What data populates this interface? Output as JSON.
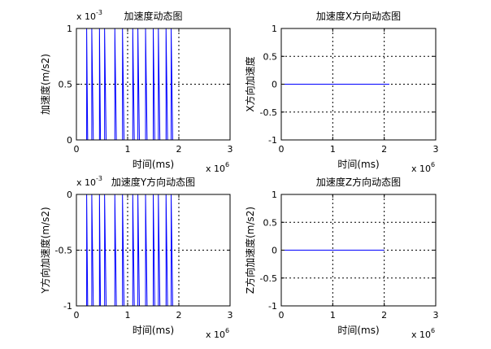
{
  "figure": {
    "background": "#ffffff",
    "axis_color": "#000000",
    "line_color": "#0000ff",
    "grid_color": "#000000"
  },
  "chart_data": [
    {
      "type": "line",
      "title": "加速度动态图",
      "xlabel": "时间(ms)",
      "ylabel": "加速度(m/s2)",
      "xlim": [
        0,
        3
      ],
      "ylim": [
        0,
        1
      ],
      "xticks": [
        "0",
        "1",
        "2",
        "3"
      ],
      "yticks": [
        "0",
        "0.5",
        "1"
      ],
      "x_exponent_base": "x 10",
      "x_exponent_power": "6",
      "y_exponent_base": "x 10",
      "y_exponent_power": "-3",
      "grid": true,
      "series": [
        {
          "color": "#0000ff",
          "x": [
            0.2,
            0.2,
            0.22,
            0.3,
            0.3,
            0.33,
            0.45,
            0.45,
            0.47,
            0.55,
            0.55,
            0.58,
            0.75,
            0.75,
            0.78,
            0.9,
            0.9,
            0.93,
            1.1,
            1.1,
            1.13,
            1.2,
            1.2,
            1.23,
            1.35,
            1.35,
            1.38,
            1.5,
            1.5,
            1.53,
            1.6,
            1.6,
            1.63,
            1.75,
            1.75,
            1.78,
            1.85,
            1.85,
            1.88
          ],
          "y": [
            0,
            1,
            0,
            0,
            1,
            0,
            0,
            1,
            0,
            0,
            1,
            0,
            0,
            1,
            0,
            0,
            1,
            0,
            0,
            1,
            0,
            0,
            1,
            0,
            0,
            1,
            0,
            0,
            1,
            0,
            0,
            1,
            0,
            0,
            1,
            0,
            0,
            1,
            0
          ]
        }
      ]
    },
    {
      "type": "line",
      "title": "加速度X方向动态图",
      "xlabel": "时间(ms)",
      "ylabel": "X方向加速度",
      "xlim": [
        0,
        3
      ],
      "ylim": [
        -1,
        1
      ],
      "xticks": [
        "0",
        "1",
        "2",
        "3"
      ],
      "yticks": [
        "-1",
        "-0.5",
        "0",
        "0.5",
        "1"
      ],
      "x_exponent_base": "x 10",
      "x_exponent_power": "6",
      "grid": true,
      "series": [
        {
          "color": "#0000ff",
          "x": [
            0,
            2.1
          ],
          "y": [
            0,
            0
          ]
        }
      ]
    },
    {
      "type": "line",
      "title": "加速度Y方向动态图",
      "xlabel": "时间(ms)",
      "ylabel": "Y方向加速度(m/s2)",
      "xlim": [
        0,
        3
      ],
      "ylim": [
        -1,
        0
      ],
      "xticks": [
        "0",
        "1",
        "2",
        "3"
      ],
      "yticks": [
        "-1",
        "-0.5",
        "0"
      ],
      "x_exponent_base": "x 10",
      "x_exponent_power": "6",
      "y_exponent_base": "x 10",
      "y_exponent_power": "-3",
      "grid": true,
      "series": [
        {
          "color": "#0000ff",
          "x": [
            0.2,
            0.2,
            0.22,
            0.3,
            0.3,
            0.33,
            0.45,
            0.45,
            0.47,
            0.55,
            0.55,
            0.58,
            0.75,
            0.75,
            0.78,
            0.9,
            0.9,
            0.93,
            1.1,
            1.1,
            1.13,
            1.2,
            1.2,
            1.23,
            1.35,
            1.35,
            1.38,
            1.5,
            1.5,
            1.53,
            1.6,
            1.6,
            1.63,
            1.75,
            1.75,
            1.78,
            1.85,
            1.85,
            1.88
          ],
          "y": [
            -1,
            0,
            -1,
            -1,
            0,
            -1,
            -1,
            0,
            -1,
            -1,
            0,
            -1,
            -1,
            0,
            -1,
            -1,
            0,
            -1,
            -1,
            0,
            -1,
            -1,
            0,
            -1,
            -1,
            0,
            -1,
            -1,
            0,
            -1,
            -1,
            0,
            -1,
            -1,
            0,
            -1,
            -1,
            0,
            -1
          ]
        }
      ]
    },
    {
      "type": "line",
      "title": "加速度Z方向动态图",
      "xlabel": "时间(ms)",
      "ylabel": "Z方向加速度(m/s2)",
      "xlim": [
        0,
        3
      ],
      "ylim": [
        -1,
        1
      ],
      "xticks": [
        "0",
        "1",
        "2",
        "3"
      ],
      "yticks": [
        "-1",
        "-0.5",
        "0",
        "0.5",
        "1"
      ],
      "x_exponent_base": "x 10",
      "x_exponent_power": "6",
      "grid": true,
      "series": [
        {
          "color": "#0000ff",
          "x": [
            0,
            2.0
          ],
          "y": [
            0,
            0
          ]
        }
      ]
    }
  ]
}
